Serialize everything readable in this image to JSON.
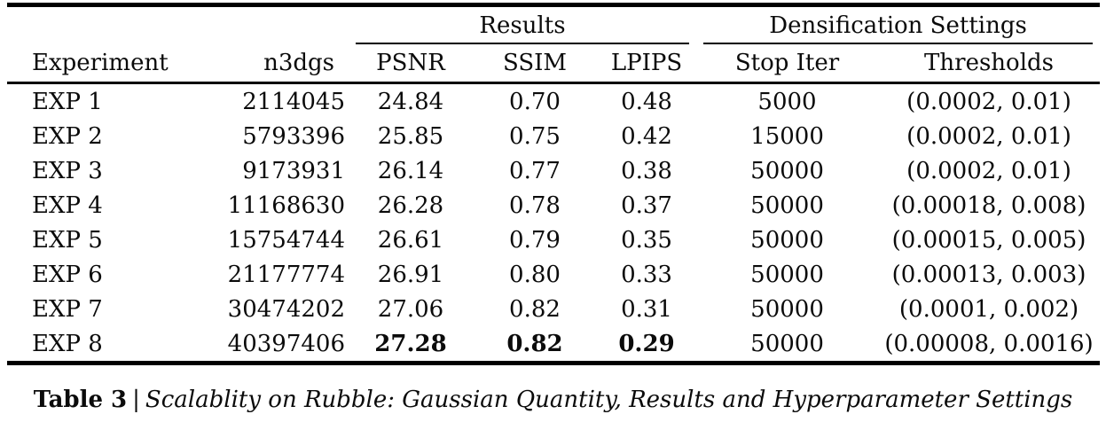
{
  "table": {
    "column_groups": [
      {
        "label": "Results",
        "span": 3
      },
      {
        "label": "Densification Settings",
        "span": 2
      }
    ],
    "columns": [
      "Experiment",
      "n3dgs",
      "PSNR",
      "SSIM",
      "LPIPS",
      "Stop Iter",
      "Thresholds"
    ],
    "rows": [
      {
        "experiment": "EXP 1",
        "n3dgs": "2114045",
        "psnr": "24.84",
        "ssim": "0.70",
        "lpips": "0.48",
        "stop_iter": "5000",
        "thresholds": "(0.0002, 0.01)"
      },
      {
        "experiment": "EXP 2",
        "n3dgs": "5793396",
        "psnr": "25.85",
        "ssim": "0.75",
        "lpips": "0.42",
        "stop_iter": "15000",
        "thresholds": "(0.0002, 0.01)"
      },
      {
        "experiment": "EXP 3",
        "n3dgs": "9173931",
        "psnr": "26.14",
        "ssim": "0.77",
        "lpips": "0.38",
        "stop_iter": "50000",
        "thresholds": "(0.0002, 0.01)"
      },
      {
        "experiment": "EXP 4",
        "n3dgs": "11168630",
        "psnr": "26.28",
        "ssim": "0.78",
        "lpips": "0.37",
        "stop_iter": "50000",
        "thresholds": "(0.00018, 0.008)"
      },
      {
        "experiment": "EXP 5",
        "n3dgs": "15754744",
        "psnr": "26.61",
        "ssim": "0.79",
        "lpips": "0.35",
        "stop_iter": "50000",
        "thresholds": "(0.00015, 0.005)"
      },
      {
        "experiment": "EXP 6",
        "n3dgs": "21177774",
        "psnr": "26.91",
        "ssim": "0.80",
        "lpips": "0.33",
        "stop_iter": "50000",
        "thresholds": "(0.00013, 0.003)"
      },
      {
        "experiment": "EXP 7",
        "n3dgs": "30474202",
        "psnr": "27.06",
        "ssim": "0.82",
        "lpips": "0.31",
        "stop_iter": "50000",
        "thresholds": "(0.0001, 0.002)"
      },
      {
        "experiment": "EXP 8",
        "n3dgs": "40397406",
        "psnr": "27.28",
        "ssim": "0.82",
        "lpips": "0.29",
        "stop_iter": "50000",
        "thresholds": "(0.00008, 0.0016)"
      }
    ],
    "best_results_row": "EXP 8"
  },
  "caption": {
    "label": "Table 3",
    "separator": "|",
    "text": "Scalablity on Rubble: Gaussian Quantity, Results and Hyperparameter Settings"
  },
  "colors": {
    "text": "#0b0b0b",
    "rule": "#000000",
    "background": "#ffffff"
  }
}
